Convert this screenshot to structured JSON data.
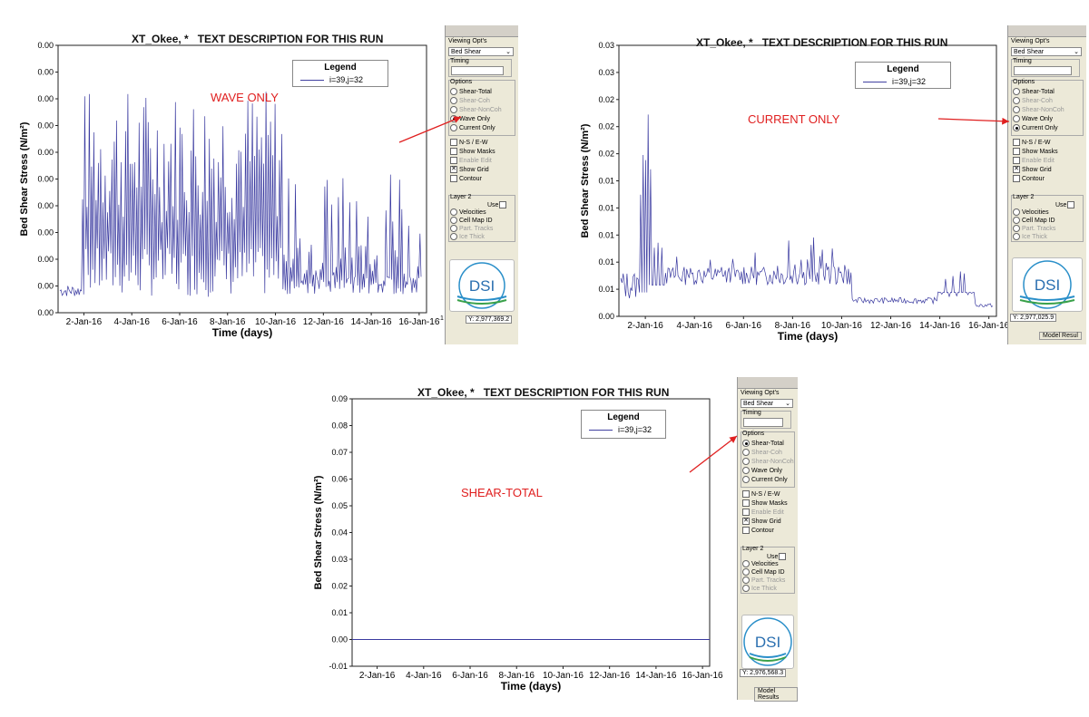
{
  "panels": [
    {
      "id": "wave",
      "title": "XT_Okee, *   TEXT DESCRIPTION FOR THIS RUN",
      "annotation": "WAVE ONLY",
      "ylabel": "Bed Shear Stress (N/m²)",
      "xlabel": "Time (days)",
      "legend_title": "Legend",
      "legend_entry": "i=39,j=32",
      "ytick_labels": [
        "0.00",
        "0.00",
        "0.00",
        "0.00",
        "0.00",
        "0.00",
        "0.00",
        "0.00",
        "0.00",
        "0.00",
        "0.00"
      ],
      "xtick_labels": [
        "2-Jan-16",
        "4-Jan-16",
        "6-Jan-16",
        "8-Jan-16",
        "10-Jan-16",
        "12-Jan-16",
        "14-Jan-16",
        "16-Jan-16"
      ],
      "coord_left": ".1",
      "coord_right": "Y: 2,977,369.2",
      "model_results": "",
      "selected_option": "Wave Only"
    },
    {
      "id": "current",
      "title": "XT_Okee, *   TEXT DESCRIPTION FOR THIS RUN",
      "annotation": "CURRENT ONLY",
      "ylabel": "Bed Shear Stress (N/m²)",
      "xlabel": "Time (days)",
      "legend_title": "Legend",
      "legend_entry": "i=39,j=32",
      "ytick_labels": [
        "0.00",
        "0.01",
        "0.01",
        "0.01",
        "0.01",
        "0.01",
        "0.02",
        "0.02",
        "0.02",
        "0.03",
        "0.03"
      ],
      "xtick_labels": [
        "2-Jan-16",
        "4-Jan-16",
        "6-Jan-16",
        "8-Jan-16",
        "10-Jan-16",
        "12-Jan-16",
        "14-Jan-16",
        "16-Jan-16"
      ],
      "coord_left": "",
      "coord_right": "Y: 2,977,025.9",
      "model_results": "Model Resul",
      "selected_option": "Current Only"
    },
    {
      "id": "total",
      "title": "XT_Okee, *   TEXT DESCRIPTION FOR THIS RUN",
      "annotation": "SHEAR-TOTAL",
      "ylabel": "Bed Shear Stress (N/m²)",
      "xlabel": "Time (days)",
      "legend_title": "Legend",
      "legend_entry": "i=39,j=32",
      "ytick_labels": [
        "-0.01",
        "0.00",
        "0.01",
        "0.02",
        "0.03",
        "0.04",
        "0.05",
        "0.06",
        "0.07",
        "0.08",
        "0.09"
      ],
      "xtick_labels": [
        "2-Jan-16",
        "4-Jan-16",
        "6-Jan-16",
        "8-Jan-16",
        "10-Jan-16",
        "12-Jan-16",
        "14-Jan-16",
        "16-Jan-16"
      ],
      "coord_left": "",
      "coord_right": "Y: 2,976,568.3",
      "model_results": "Model Results",
      "selected_option": "Shear-Total"
    }
  ],
  "side_panel": {
    "viewing_opts": "Viewing Opt's",
    "dropdown_value": "Bed Shear",
    "timing": "Timing",
    "options": "Options",
    "radio_options": [
      "Shear-Total",
      "Shear-Coh",
      "Shear-NonCoh",
      "Wave Only",
      "Current Only"
    ],
    "disabled_radios": [
      "Shear-Coh",
      "Shear-NonCoh"
    ],
    "checkboxes": [
      {
        "label": "N-S / E-W",
        "checked": false,
        "disabled": false
      },
      {
        "label": "Show Masks",
        "checked": false,
        "disabled": false
      },
      {
        "label": "Enable Edit",
        "checked": false,
        "disabled": true
      },
      {
        "label": "Show Grid",
        "checked": true,
        "disabled": false
      },
      {
        "label": "Contour",
        "checked": false,
        "disabled": false
      }
    ],
    "layer2": "Layer 2",
    "use": "Use",
    "layer_radios": [
      {
        "label": "Velocities",
        "disabled": false
      },
      {
        "label": "Cell Map ID",
        "disabled": false
      },
      {
        "label": "Part. Tracks",
        "disabled": true
      },
      {
        "label": "Ice Thick",
        "disabled": true
      }
    ],
    "logo": "DSI"
  },
  "colors": {
    "series": "#3a3aa0",
    "annotation": "#e02020",
    "panel_bg": "#ece9d8"
  },
  "chart_data": [
    {
      "type": "line",
      "title": "XT_Okee, *   TEXT DESCRIPTION FOR THIS RUN",
      "xlabel": "Time (days)",
      "ylabel": "Bed Shear Stress (N/m²)",
      "series": [
        {
          "name": "i=39,j=32",
          "description": "highly oscillating wave-only bed shear, peaks near top of axis early, decaying after 12-Jan-16"
        }
      ],
      "x_range": [
        "1-Jan-16",
        "17-Jan-16"
      ],
      "grid": false,
      "legend": "top-right"
    },
    {
      "type": "line",
      "title": "XT_Okee, *   TEXT DESCRIPTION FOR THIS RUN",
      "xlabel": "Time (days)",
      "ylabel": "Bed Shear Stress (N/m²)",
      "series": [
        {
          "name": "i=39,j=32",
          "description": "current-only bed shear with spikes near 2-Jan-16 (~0.034), small oscillations afterward, smaller peaks near 9-Jan-16 and 15-Jan-16"
        }
      ],
      "x_range": [
        "1-Jan-16",
        "17-Jan-16"
      ],
      "grid": false,
      "legend": "top-right"
    },
    {
      "type": "line",
      "title": "XT_Okee, *   TEXT DESCRIPTION FOR THIS RUN",
      "xlabel": "Time (days)",
      "ylabel": "Bed Shear Stress (N/m²)",
      "series": [
        {
          "name": "i=39,j=32",
          "values_note": "flat at 0.00 across full time range"
        }
      ],
      "ylim": [
        -0.01,
        0.09
      ],
      "x_range": [
        "1-Jan-16",
        "17-Jan-16"
      ],
      "grid": false,
      "legend": "top-right"
    }
  ]
}
